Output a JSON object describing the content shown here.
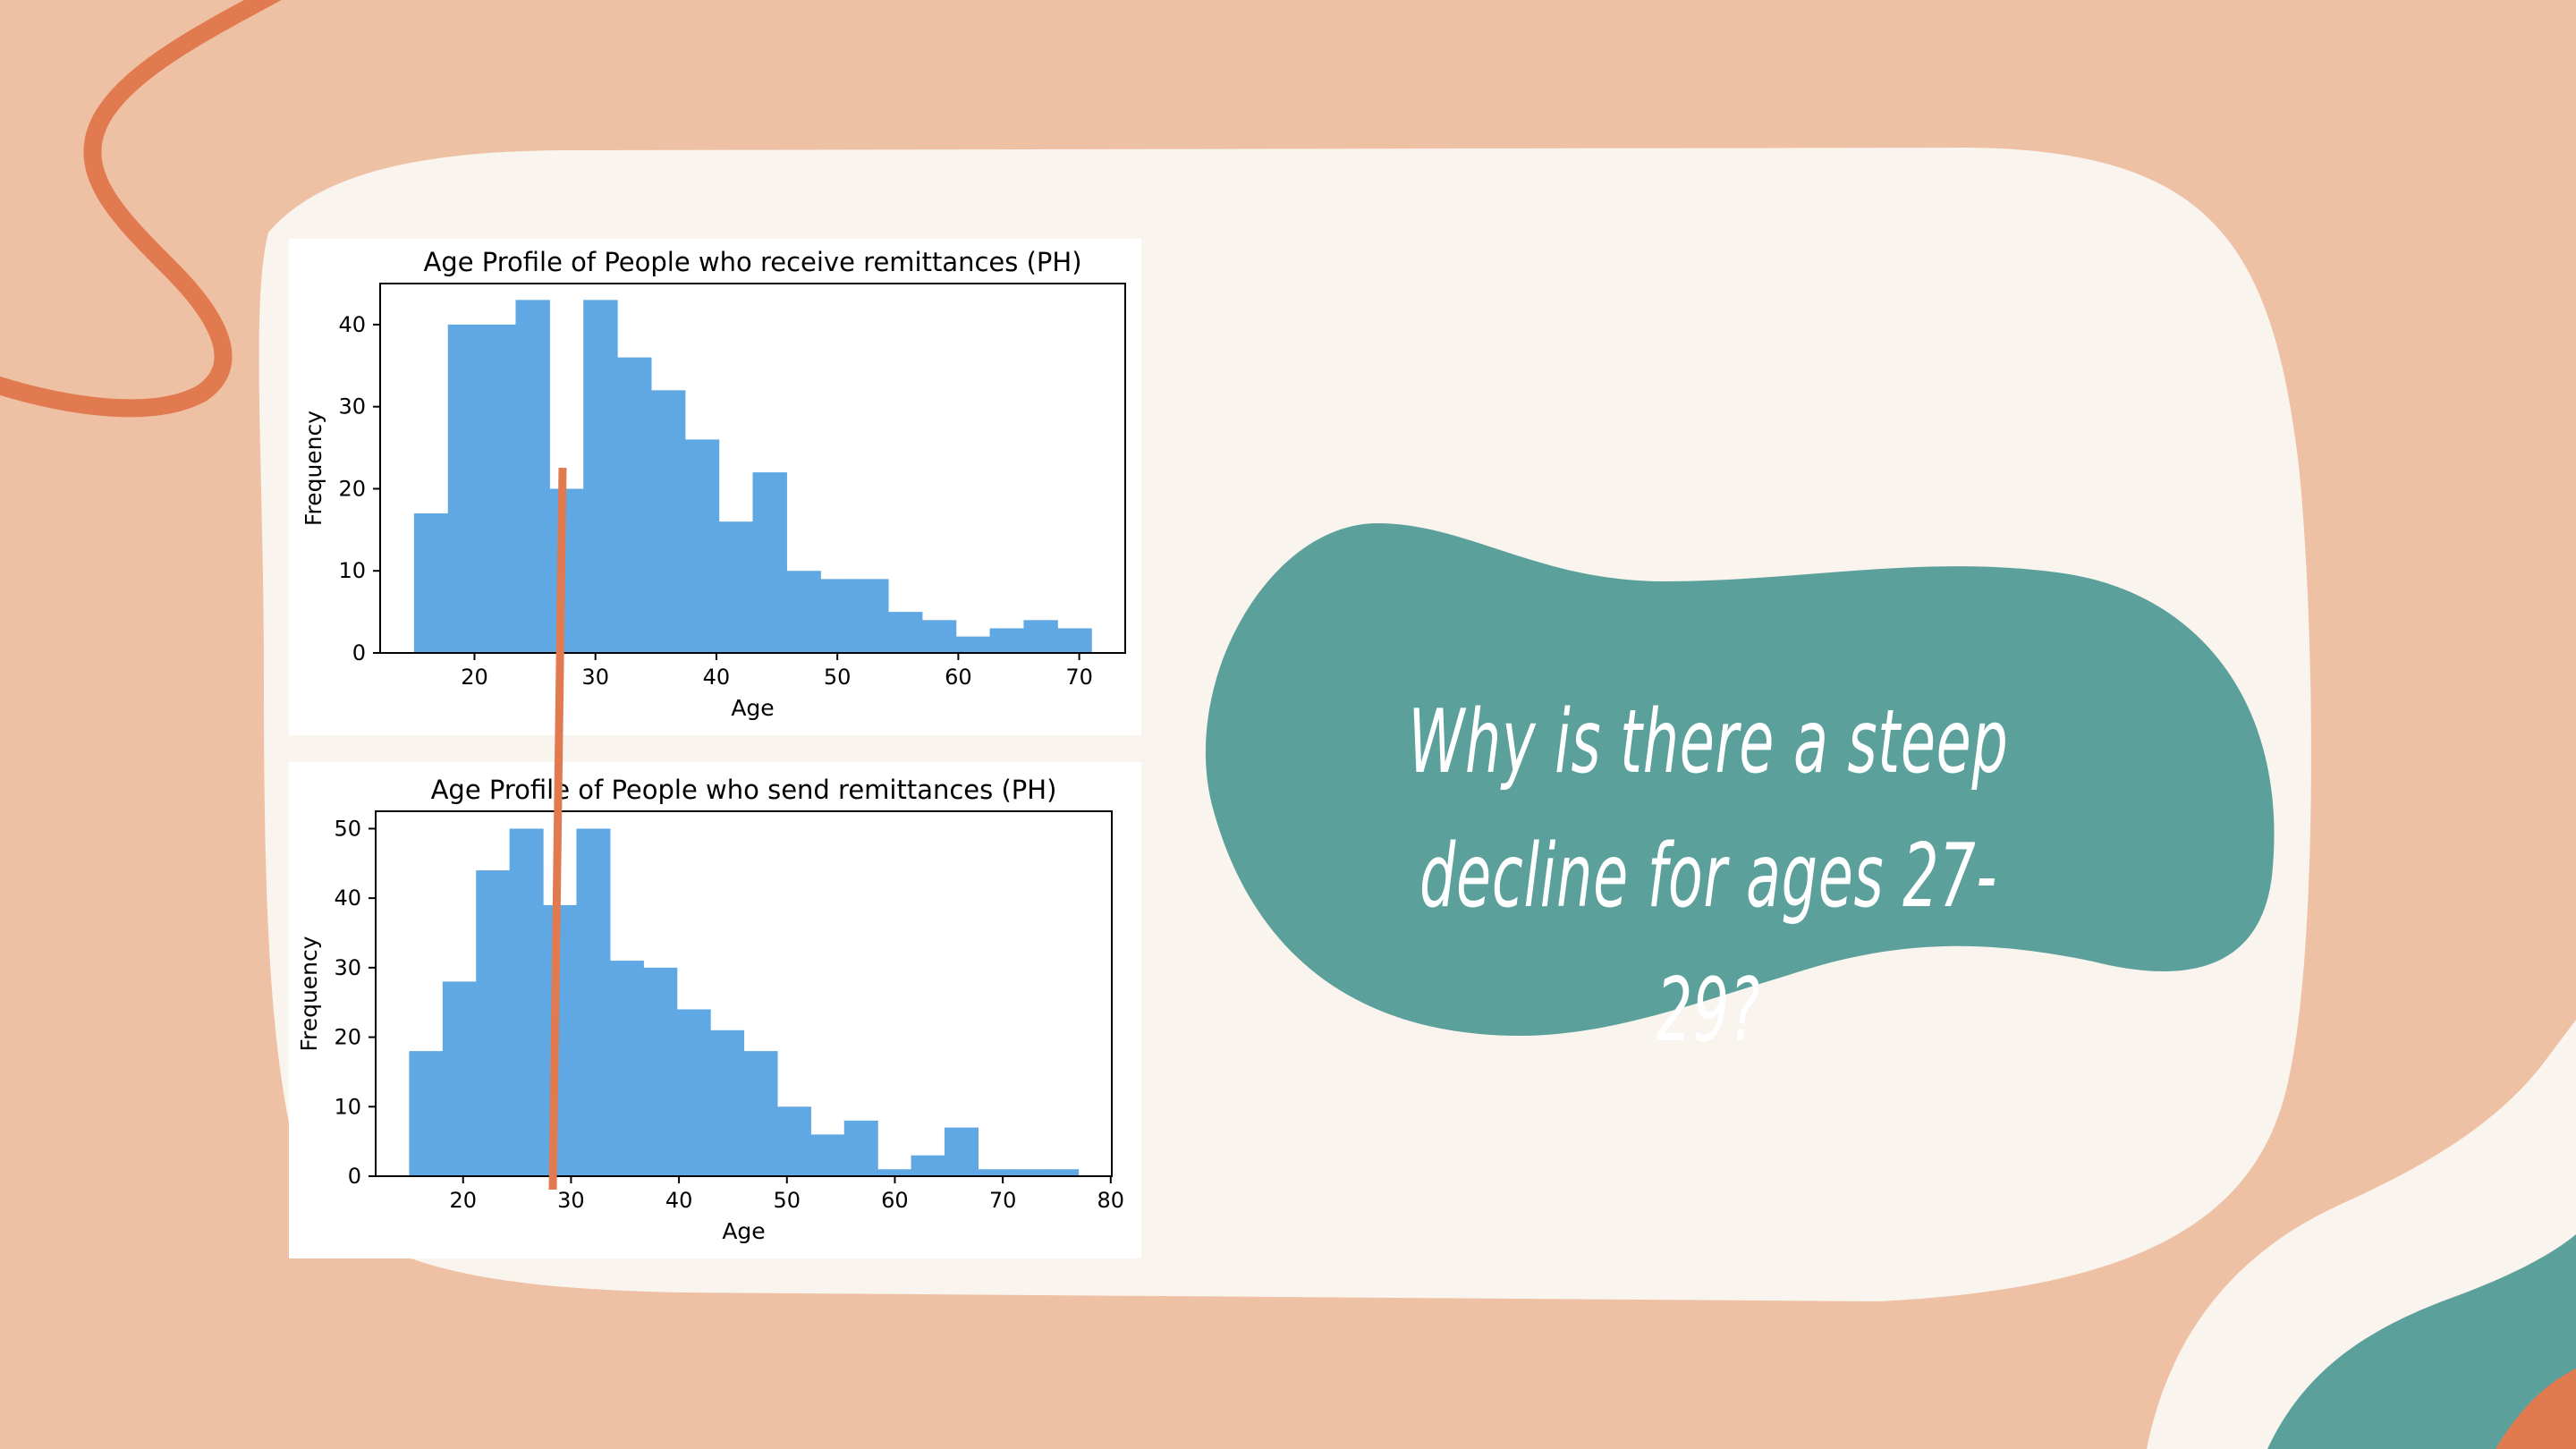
{
  "colors": {
    "background": "#eec1a4",
    "card": "#f9f4ee",
    "accent_orange": "#e27a50",
    "teal": "#5ca09c",
    "bar": "#60a8e4"
  },
  "question": "Why is there a steep decline for ages 27-29?",
  "chart_data": [
    {
      "type": "bar",
      "title": "Age Profile of People who receive remittances (PH)",
      "xlabel": "Age",
      "ylabel": "Frequency",
      "xlim": [
        12.2,
        73.8
      ],
      "ylim": [
        0,
        45
      ],
      "xticks": [
        20,
        30,
        40,
        50,
        60,
        70
      ],
      "yticks": [
        0,
        10,
        20,
        30,
        40
      ],
      "bin_edges": [
        15,
        17.8,
        20.6,
        23.4,
        26.2,
        29,
        31.8,
        34.6,
        37.4,
        40.2,
        43,
        45.8,
        48.6,
        51.4,
        54.2,
        57,
        59.8,
        62.6,
        65.4,
        68.2,
        71
      ],
      "values": [
        17,
        40,
        40,
        43,
        20,
        43,
        36,
        32,
        26,
        16,
        22,
        10,
        9,
        9,
        5,
        4,
        2,
        3,
        4,
        3
      ]
    },
    {
      "type": "bar",
      "title": "Age Profile of People who send remittances (PH)",
      "xlabel": "Age",
      "ylabel": "Frequency",
      "xlim": [
        11.9,
        80.1
      ],
      "ylim": [
        0,
        52.5
      ],
      "xticks": [
        20,
        30,
        40,
        50,
        60,
        70,
        80
      ],
      "yticks": [
        0,
        10,
        20,
        30,
        40,
        50
      ],
      "bin_edges": [
        15,
        18.1,
        21.2,
        24.3,
        27.4,
        30.5,
        33.6,
        36.7,
        39.8,
        42.9,
        46,
        49.1,
        52.2,
        55.3,
        58.4,
        61.5,
        64.6,
        67.7,
        70.8,
        73.9,
        77
      ],
      "values": [
        18,
        28,
        44,
        50,
        39,
        50,
        31,
        30,
        24,
        21,
        18,
        10,
        6,
        8,
        1,
        3,
        7,
        1,
        1,
        1
      ]
    }
  ]
}
